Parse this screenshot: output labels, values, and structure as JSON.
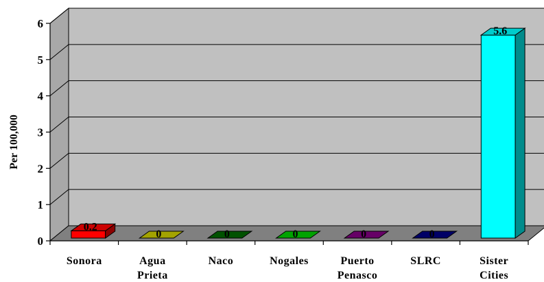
{
  "chart_data": {
    "type": "bar",
    "style": "3d-column",
    "categories": [
      "Sonora",
      "Agua Prieta",
      "Naco",
      "Nogales",
      "Puerto Penasco",
      "SLRC",
      "Sister Cities"
    ],
    "category_lines": [
      [
        "Sonora"
      ],
      [
        "Agua",
        "Prieta"
      ],
      [
        "Naco"
      ],
      [
        "Nogales"
      ],
      [
        "Puerto",
        "Penasco"
      ],
      [
        "SLRC"
      ],
      [
        "Sister",
        "Cities"
      ]
    ],
    "values": [
      0.2,
      0,
      0,
      0,
      0,
      0,
      5.6
    ],
    "data_labels": [
      "0.2",
      "0",
      "0",
      "0",
      "0",
      "0",
      "5.6"
    ],
    "colors": [
      "#ff0000",
      "#cccc00",
      "#006600",
      "#00cc00",
      "#800080",
      "#000080",
      "#00ffff"
    ],
    "ylabel": "Per 100,000",
    "xlabel": "",
    "title": "",
    "ylim": [
      0,
      6
    ],
    "yticks": [
      "0",
      "1",
      "2",
      "3",
      "4",
      "5",
      "6"
    ],
    "grid": true,
    "legend": "none",
    "wall_color": "#c0c0c0",
    "floor_color": "#808080"
  }
}
